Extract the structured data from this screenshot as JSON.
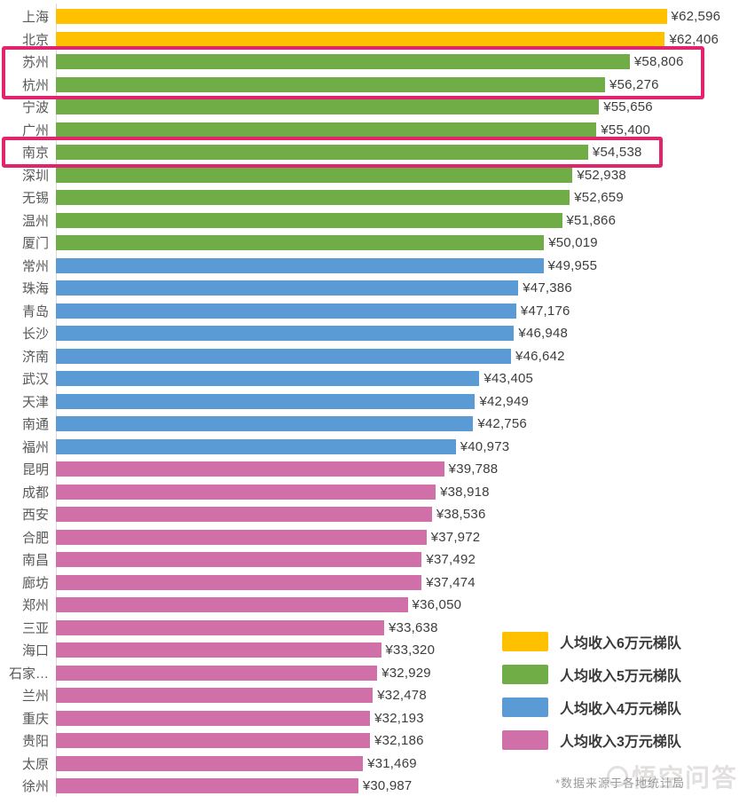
{
  "chart_data": {
    "type": "bar",
    "orientation": "horizontal",
    "title": "",
    "value_prefix": "¥",
    "axis": {
      "min": 0,
      "max": 70000,
      "gridlines": false
    },
    "tiers": [
      {
        "id": "tier6",
        "label": "人均收入6万元梯队",
        "color": "#FFC000"
      },
      {
        "id": "tier5",
        "label": "人均收入5万元梯队",
        "color": "#70AD47"
      },
      {
        "id": "tier4",
        "label": "人均收入4万元梯队",
        "color": "#5B9BD5"
      },
      {
        "id": "tier3",
        "label": "人均收入3万元梯队",
        "color": "#D06FA8"
      }
    ],
    "bars": [
      {
        "city": "上海",
        "value": 62596,
        "display": "¥62,596",
        "tier": "tier6"
      },
      {
        "city": "北京",
        "value": 62406,
        "display": "¥62,406",
        "tier": "tier6"
      },
      {
        "city": "苏州",
        "value": 58806,
        "display": "¥58,806",
        "tier": "tier5"
      },
      {
        "city": "杭州",
        "value": 56276,
        "display": "¥56,276",
        "tier": "tier5"
      },
      {
        "city": "宁波",
        "value": 55656,
        "display": "¥55,656",
        "tier": "tier5"
      },
      {
        "city": "广州",
        "value": 55400,
        "display": "¥55,400",
        "tier": "tier5"
      },
      {
        "city": "南京",
        "value": 54538,
        "display": "¥54,538",
        "tier": "tier5"
      },
      {
        "city": "深圳",
        "value": 52938,
        "display": "¥52,938",
        "tier": "tier5"
      },
      {
        "city": "无锡",
        "value": 52659,
        "display": "¥52,659",
        "tier": "tier5"
      },
      {
        "city": "温州",
        "value": 51866,
        "display": "¥51,866",
        "tier": "tier5"
      },
      {
        "city": "厦门",
        "value": 50019,
        "display": "¥50,019",
        "tier": "tier5"
      },
      {
        "city": "常州",
        "value": 49955,
        "display": "¥49,955",
        "tier": "tier4"
      },
      {
        "city": "珠海",
        "value": 47386,
        "display": "¥47,386",
        "tier": "tier4"
      },
      {
        "city": "青岛",
        "value": 47176,
        "display": "¥47,176",
        "tier": "tier4"
      },
      {
        "city": "长沙",
        "value": 46948,
        "display": "¥46,948",
        "tier": "tier4"
      },
      {
        "city": "济南",
        "value": 46642,
        "display": "¥46,642",
        "tier": "tier4"
      },
      {
        "city": "武汉",
        "value": 43405,
        "display": "¥43,405",
        "tier": "tier4"
      },
      {
        "city": "天津",
        "value": 42949,
        "display": "¥42,949",
        "tier": "tier4"
      },
      {
        "city": "南通",
        "value": 42756,
        "display": "¥42,756",
        "tier": "tier4"
      },
      {
        "city": "福州",
        "value": 40973,
        "display": "¥40,973",
        "tier": "tier4"
      },
      {
        "city": "昆明",
        "value": 39788,
        "display": "¥39,788",
        "tier": "tier3"
      },
      {
        "city": "成都",
        "value": 38918,
        "display": "¥38,918",
        "tier": "tier3"
      },
      {
        "city": "西安",
        "value": 38536,
        "display": "¥38,536",
        "tier": "tier3"
      },
      {
        "city": "合肥",
        "value": 37972,
        "display": "¥37,972",
        "tier": "tier3"
      },
      {
        "city": "南昌",
        "value": 37492,
        "display": "¥37,492",
        "tier": "tier3"
      },
      {
        "city": "廊坊",
        "value": 37474,
        "display": "¥37,474",
        "tier": "tier3"
      },
      {
        "city": "郑州",
        "value": 36050,
        "display": "¥36,050",
        "tier": "tier3"
      },
      {
        "city": "三亚",
        "value": 33638,
        "display": "¥33,638",
        "tier": "tier3"
      },
      {
        "city": "海口",
        "value": 33320,
        "display": "¥33,320",
        "tier": "tier3"
      },
      {
        "city": "石家…",
        "value": 32929,
        "display": "¥32,929",
        "tier": "tier3"
      },
      {
        "city": "兰州",
        "value": 32478,
        "display": "¥32,478",
        "tier": "tier3"
      },
      {
        "city": "重庆",
        "value": 32193,
        "display": "¥32,193",
        "tier": "tier3"
      },
      {
        "city": "贵阳",
        "value": 32186,
        "display": "¥32,186",
        "tier": "tier3"
      },
      {
        "city": "太原",
        "value": 31469,
        "display": "¥31,469",
        "tier": "tier3"
      },
      {
        "city": "徐州",
        "value": 30987,
        "display": "¥30,987",
        "tier": "tier3"
      }
    ],
    "highlights": [
      {
        "cities": [
          "苏州",
          "杭州"
        ],
        "color": "#E2246F"
      },
      {
        "cities": [
          "南京"
        ],
        "color": "#E2246F"
      }
    ],
    "legend_position": "bottom-right",
    "footnote": "*数据来源于各地统计局"
  },
  "watermark": {
    "text": "悟空问答"
  }
}
